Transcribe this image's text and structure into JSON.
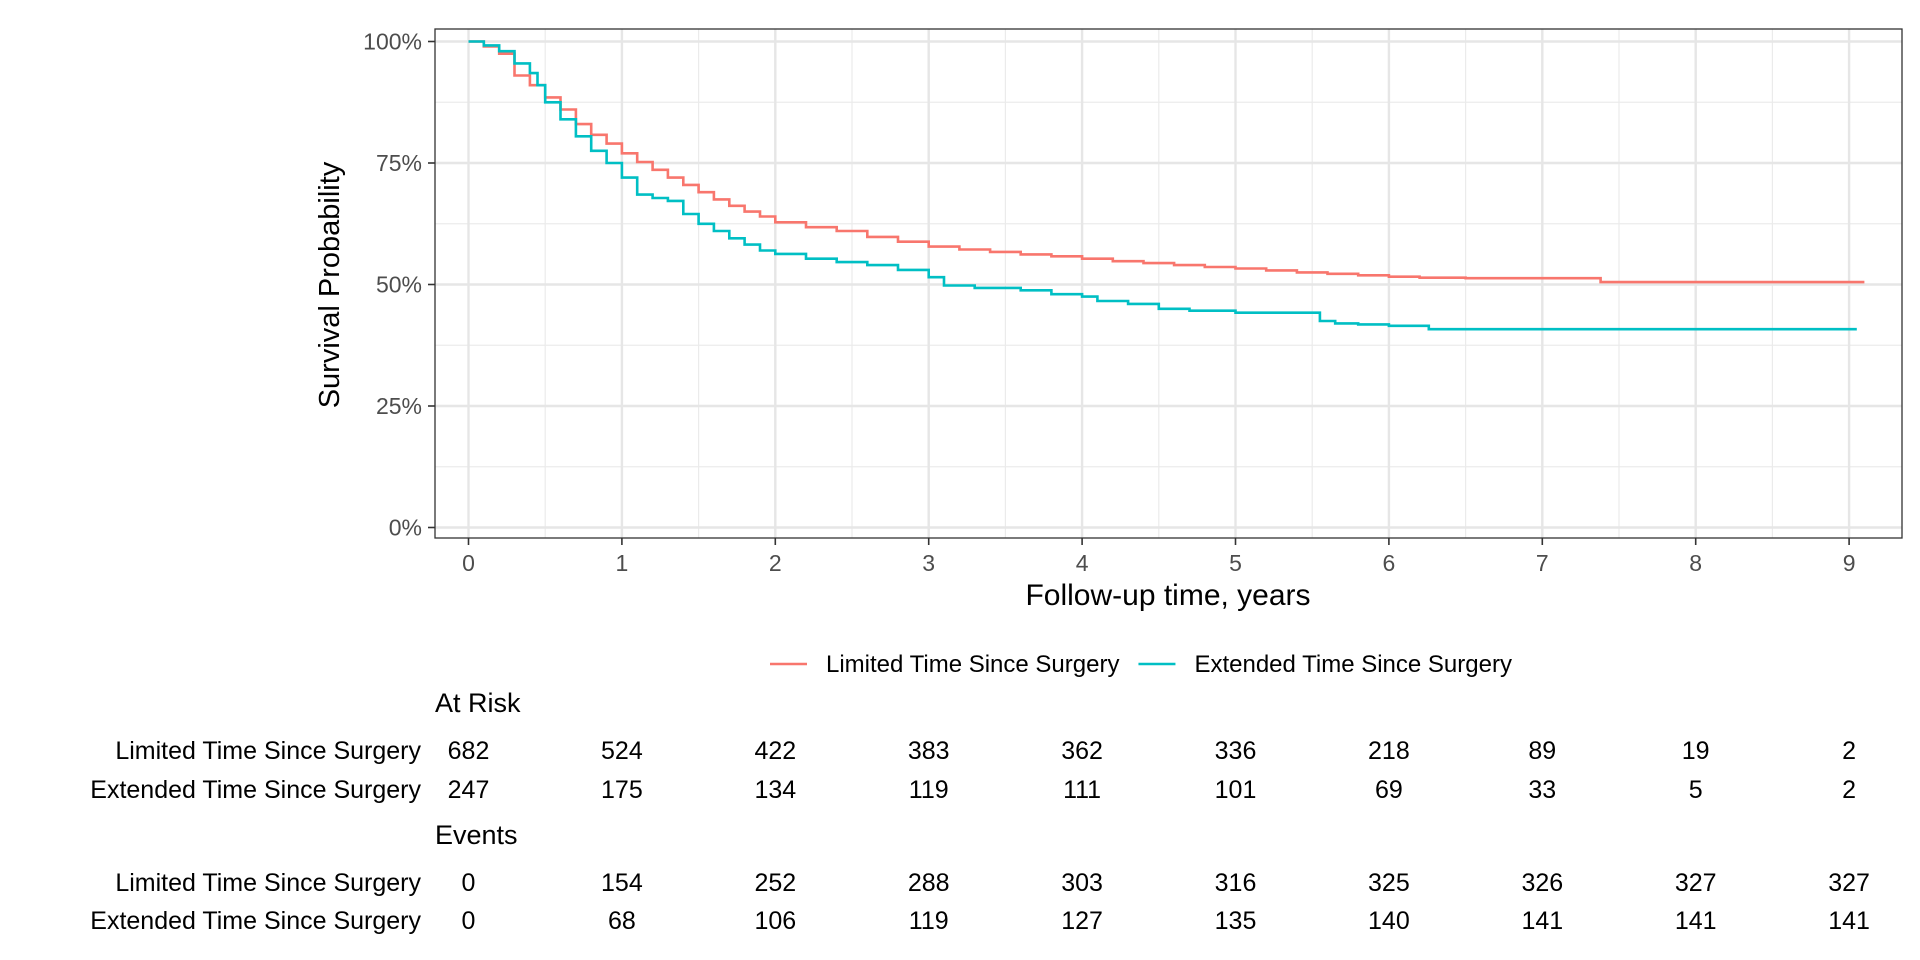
{
  "chart_data": {
    "type": "line",
    "xlabel": "Follow-up time, years",
    "ylabel": "Survival Probability",
    "xlim": [
      -0.22,
      9.35
    ],
    "ylim": [
      -0.02,
      1.025
    ],
    "x_ticks": [
      0,
      1,
      2,
      3,
      4,
      5,
      6,
      7,
      8,
      9
    ],
    "y_ticks": [
      0,
      0.25,
      0.5,
      0.75,
      1
    ],
    "y_tick_labels": [
      "0%",
      "25%",
      "50%",
      "75%",
      "100%"
    ],
    "grid": true,
    "legend_position": "bottom",
    "series": [
      {
        "name": "Limited Time Since Surgery",
        "color": "#F8766D",
        "step": true,
        "points": [
          [
            0,
            1.0
          ],
          [
            0.1,
            0.99
          ],
          [
            0.2,
            0.975
          ],
          [
            0.3,
            0.93
          ],
          [
            0.4,
            0.91
          ],
          [
            0.5,
            0.885
          ],
          [
            0.6,
            0.86
          ],
          [
            0.7,
            0.83
          ],
          [
            0.8,
            0.808
          ],
          [
            0.9,
            0.79
          ],
          [
            1.0,
            0.77
          ],
          [
            1.1,
            0.752
          ],
          [
            1.2,
            0.736
          ],
          [
            1.3,
            0.72
          ],
          [
            1.4,
            0.705
          ],
          [
            1.5,
            0.69
          ],
          [
            1.6,
            0.675
          ],
          [
            1.7,
            0.662
          ],
          [
            1.8,
            0.65
          ],
          [
            1.9,
            0.64
          ],
          [
            2.0,
            0.628
          ],
          [
            2.2,
            0.618
          ],
          [
            2.4,
            0.61
          ],
          [
            2.6,
            0.598
          ],
          [
            2.8,
            0.588
          ],
          [
            3.0,
            0.578
          ],
          [
            3.2,
            0.572
          ],
          [
            3.4,
            0.567
          ],
          [
            3.6,
            0.562
          ],
          [
            3.8,
            0.558
          ],
          [
            4.0,
            0.553
          ],
          [
            4.2,
            0.548
          ],
          [
            4.4,
            0.544
          ],
          [
            4.6,
            0.54
          ],
          [
            4.8,
            0.536
          ],
          [
            5.0,
            0.533
          ],
          [
            5.2,
            0.529
          ],
          [
            5.4,
            0.525
          ],
          [
            5.6,
            0.522
          ],
          [
            5.8,
            0.519
          ],
          [
            6.0,
            0.516
          ],
          [
            6.2,
            0.514
          ],
          [
            6.5,
            0.513
          ],
          [
            7.0,
            0.513
          ],
          [
            7.38,
            0.513
          ],
          [
            7.38,
            0.505
          ],
          [
            8.0,
            0.505
          ],
          [
            9.1,
            0.505
          ]
        ]
      },
      {
        "name": "Extended Time Since Surgery",
        "color": "#00BFC4",
        "step": true,
        "points": [
          [
            0,
            1.0
          ],
          [
            0.1,
            0.992
          ],
          [
            0.2,
            0.98
          ],
          [
            0.3,
            0.955
          ],
          [
            0.4,
            0.935
          ],
          [
            0.45,
            0.91
          ],
          [
            0.5,
            0.875
          ],
          [
            0.6,
            0.84
          ],
          [
            0.7,
            0.805
          ],
          [
            0.8,
            0.775
          ],
          [
            0.9,
            0.75
          ],
          [
            1.0,
            0.72
          ],
          [
            1.1,
            0.685
          ],
          [
            1.2,
            0.678
          ],
          [
            1.3,
            0.672
          ],
          [
            1.4,
            0.645
          ],
          [
            1.5,
            0.625
          ],
          [
            1.6,
            0.61
          ],
          [
            1.7,
            0.595
          ],
          [
            1.8,
            0.582
          ],
          [
            1.9,
            0.57
          ],
          [
            2.0,
            0.563
          ],
          [
            2.2,
            0.553
          ],
          [
            2.4,
            0.546
          ],
          [
            2.6,
            0.54
          ],
          [
            2.8,
            0.53
          ],
          [
            3.0,
            0.515
          ],
          [
            3.1,
            0.498
          ],
          [
            3.3,
            0.493
          ],
          [
            3.6,
            0.488
          ],
          [
            3.8,
            0.48
          ],
          [
            4.0,
            0.475
          ],
          [
            4.1,
            0.466
          ],
          [
            4.3,
            0.46
          ],
          [
            4.5,
            0.45
          ],
          [
            4.7,
            0.446
          ],
          [
            5.0,
            0.442
          ],
          [
            5.3,
            0.442
          ],
          [
            5.5,
            0.442
          ],
          [
            5.55,
            0.425
          ],
          [
            5.65,
            0.42
          ],
          [
            5.8,
            0.418
          ],
          [
            6.0,
            0.415
          ],
          [
            6.26,
            0.415
          ],
          [
            6.26,
            0.408
          ],
          [
            7.0,
            0.408
          ],
          [
            8.0,
            0.408
          ],
          [
            9.05,
            0.408
          ]
        ]
      }
    ],
    "legend": [
      {
        "label": "Limited Time Since Surgery",
        "color": "#F8766D"
      },
      {
        "label": "Extended Time Since Surgery",
        "color": "#00BFC4"
      }
    ],
    "tables": [
      {
        "title": "At Risk",
        "rows": [
          {
            "label": "Limited Time Since Surgery",
            "values": [
              682,
              524,
              422,
              383,
              362,
              336,
              218,
              89,
              19,
              2
            ]
          },
          {
            "label": "Extended Time Since Surgery",
            "values": [
              247,
              175,
              134,
              119,
              111,
              101,
              69,
              33,
              5,
              2
            ]
          }
        ]
      },
      {
        "title": "Events",
        "rows": [
          {
            "label": "Limited Time Since Surgery",
            "values": [
              0,
              154,
              252,
              288,
              303,
              316,
              325,
              326,
              327,
              327
            ]
          },
          {
            "label": "Extended Time Since Surgery",
            "values": [
              0,
              68,
              106,
              119,
              127,
              135,
              140,
              141,
              141,
              141
            ]
          }
        ]
      }
    ]
  }
}
